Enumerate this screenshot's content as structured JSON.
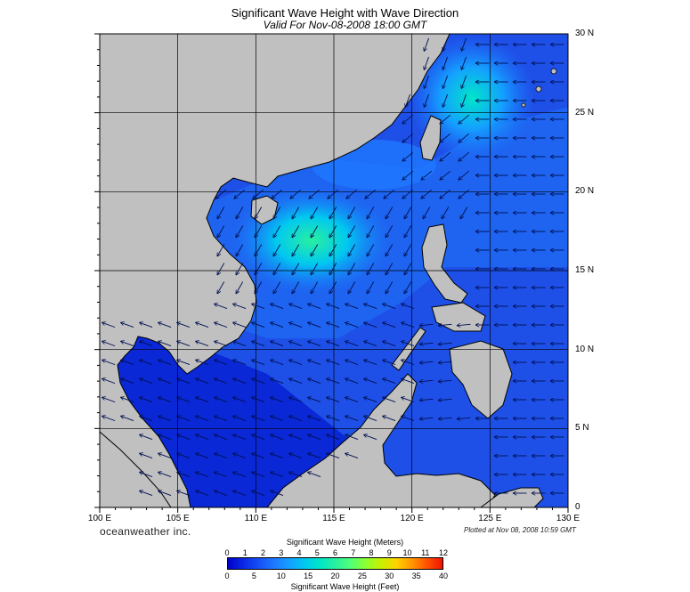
{
  "title": "Significant Wave Height with Wave Direction",
  "subtitle": "Valid For Nov-08-2008 18:00 GMT",
  "brand": "oceanweather inc.",
  "plotted": "Plotted at Nov 08, 2008 10:59 GMT",
  "lat_labels": [
    "30 N",
    "25 N",
    "20 N",
    "15 N",
    "10 N",
    "5 N",
    "0"
  ],
  "lon_labels": [
    "100 E",
    "105 E",
    "110 E",
    "115 E",
    "120 E",
    "125 E",
    "130 E"
  ],
  "colorbar": {
    "title_top": "Significant Wave Height (Meters)",
    "title_bottom": "Significant Wave Height (Feet)",
    "meters_ticks": [
      "0",
      "1",
      "2",
      "3",
      "4",
      "5",
      "6",
      "7",
      "8",
      "9",
      "10",
      "11",
      "12"
    ],
    "feet_ticks": [
      "0",
      "5",
      "10",
      "15",
      "20",
      "25",
      "30",
      "35",
      "40"
    ],
    "colors": [
      "#0000c8",
      "#0a28e6",
      "#1450f5",
      "#1e78ff",
      "#14a0ff",
      "#00c8f0",
      "#00e6c8",
      "#28f0a0",
      "#50ff78",
      "#8cff32",
      "#c8f000",
      "#ffd200",
      "#ff9600",
      "#ff5000",
      "#f01400"
    ]
  },
  "map": {
    "extent": {
      "lon": [
        100,
        130
      ],
      "lat": [
        0,
        30
      ]
    },
    "land_color": "#c0c0c0",
    "sea_base_color": "#1e50e8",
    "grid": "on"
  }
}
